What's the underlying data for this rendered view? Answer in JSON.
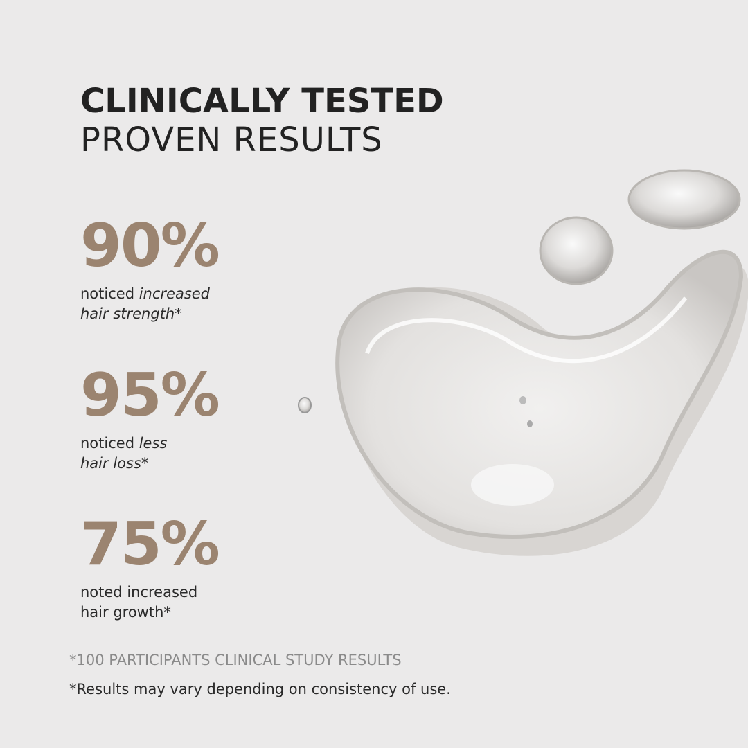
{
  "headline": {
    "line1": "CLINICALLY TESTED",
    "line2": "PROVEN RESULTS"
  },
  "stats": [
    {
      "value": "90%",
      "desc_plain": "noticed ",
      "desc_italic": "increased",
      "desc_line2": "hair strength*"
    },
    {
      "value": "95%",
      "desc_plain": "noticed ",
      "desc_italic": "less",
      "desc_line2": "hair loss*"
    },
    {
      "value": "75%",
      "desc_plain": "noted increased",
      "desc_italic": "",
      "desc_line2": "hair growth*"
    }
  ],
  "footnotes": {
    "study": "*100 PARTICIPANTS CLINICAL STUDY RESULTS",
    "disclaimer": "*Results may vary depending on consistency of use."
  },
  "colors": {
    "accent": "#9b8470",
    "background": "#ebeaea",
    "text": "#222222"
  },
  "image": "gel-droplets"
}
